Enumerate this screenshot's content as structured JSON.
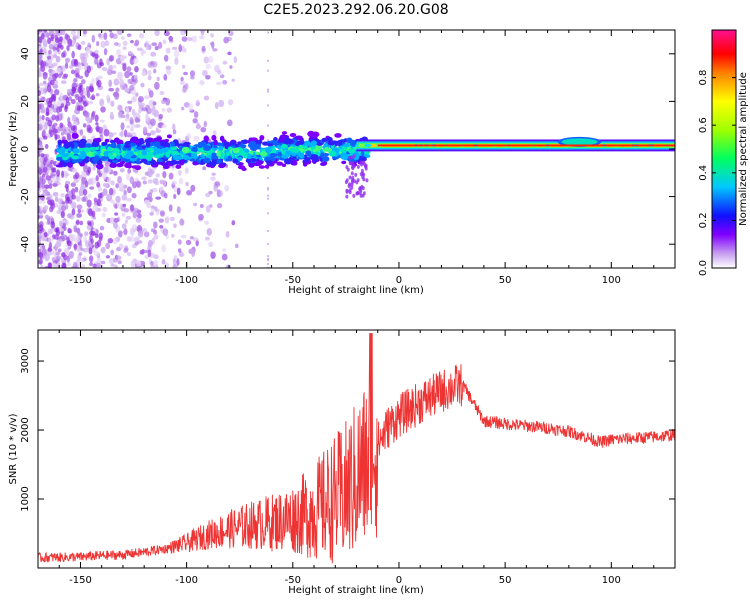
{
  "chart_data": [
    {
      "type": "heatmap",
      "title": "C2E5.2023.292.06.20.G08",
      "xlabel": "Height of straight line (km)",
      "ylabel": "Frequency (Hz)",
      "xlim": [
        -170,
        130
      ],
      "ylim": [
        -50,
        50
      ],
      "xticks": [
        -150,
        -100,
        -50,
        0,
        50,
        100
      ],
      "yticks": [
        -40,
        -20,
        0,
        20,
        40
      ],
      "colorbar": {
        "label": "Normalized spectral amplitude",
        "range": [
          0,
          1
        ],
        "ticks": [
          "0.0",
          "0.2",
          "0.4",
          "0.6",
          "0.8"
        ]
      },
      "bands": [
        {
          "x": [
            -160,
            -20
          ],
          "center_hz": 0,
          "halfwidth_hz": 6,
          "note": "scattered high-amplitude blobs"
        },
        {
          "x": [
            -20,
            130
          ],
          "center_hz": 1.5,
          "halfwidth_hz": 1.5,
          "note": "narrow coherent line near 1.5 Hz"
        },
        {
          "x": [
            75,
            95
          ],
          "center_hz": 3,
          "halfwidth_hz": 2
        }
      ]
    },
    {
      "type": "line",
      "xlabel": "Height of straight line (km)",
      "ylabel": "SNR (10 * v/v)",
      "xlim": [
        -170,
        130
      ],
      "ylim": [
        0,
        3450
      ],
      "xticks": [
        -150,
        -100,
        -50,
        0,
        50,
        100
      ],
      "yticks": [
        1000,
        2000,
        3000
      ],
      "color": "#ee3333",
      "series": [
        {
          "x": [
            -170,
            -150,
            -140,
            -130,
            -120,
            -110,
            -100,
            -90,
            -80,
            -70,
            -60,
            -50,
            -40,
            -30,
            -25,
            -20,
            -15,
            -10,
            -5,
            0,
            5,
            10,
            15,
            20,
            25,
            30,
            40,
            50,
            60,
            70,
            80,
            90,
            95,
            100,
            110,
            120,
            130
          ],
          "y": [
            150,
            160,
            180,
            190,
            230,
            280,
            360,
            480,
            560,
            620,
            660,
            720,
            820,
            1000,
            1100,
            1300,
            1500,
            1800,
            2050,
            2200,
            2300,
            2400,
            2480,
            2560,
            2620,
            2660,
            2130,
            2090,
            2060,
            2030,
            1980,
            1880,
            1820,
            1860,
            1880,
            1900,
            1930
          ]
        }
      ]
    }
  ]
}
